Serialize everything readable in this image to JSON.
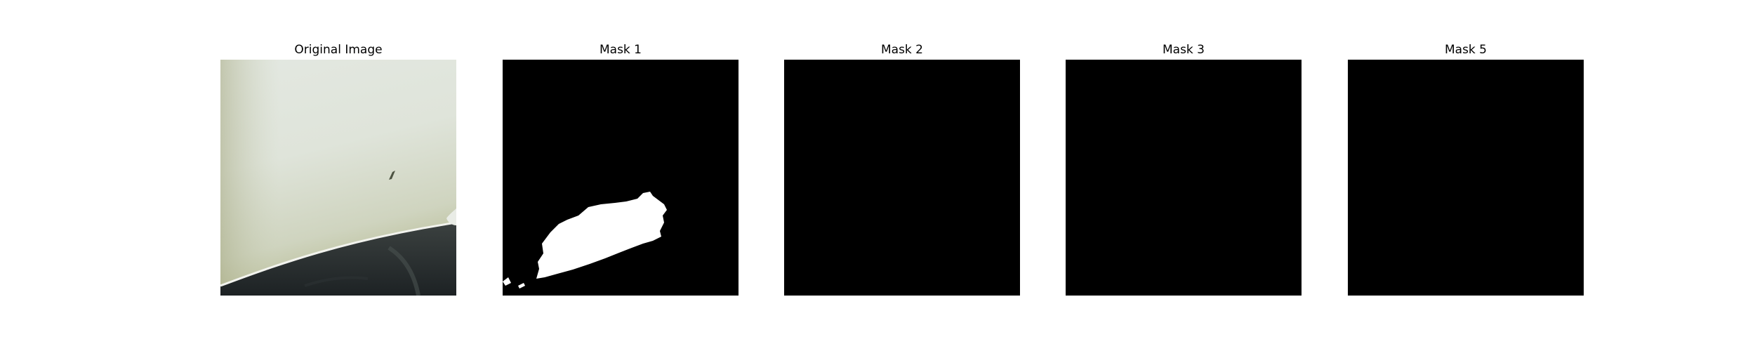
{
  "figure": {
    "panels": [
      {
        "title": "Original Image",
        "kind": "photo"
      },
      {
        "title": "Mask 1",
        "kind": "mask",
        "has_foreground": true
      },
      {
        "title": "Mask 2",
        "kind": "mask",
        "has_foreground": false
      },
      {
        "title": "Mask 3",
        "kind": "mask",
        "has_foreground": false
      },
      {
        "title": "Mask 5",
        "kind": "mask",
        "has_foreground": false
      }
    ]
  },
  "colors": {
    "background": "#ffffff",
    "mask_background": "#000000",
    "mask_foreground": "#ffffff"
  }
}
